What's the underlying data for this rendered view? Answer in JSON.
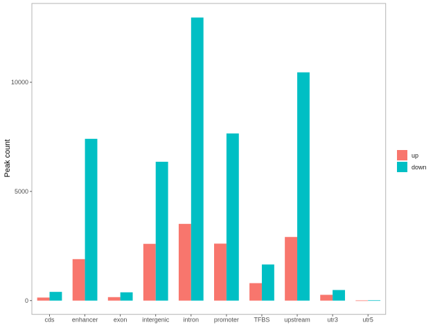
{
  "chart_data": {
    "type": "bar",
    "title": "",
    "xlabel": "",
    "ylabel": "Peak count",
    "categories": [
      "cds",
      "enhancer",
      "exon",
      "intergenic",
      "intron",
      "promoter",
      "TFBS",
      "upstream",
      "utr3",
      "utr5"
    ],
    "series": [
      {
        "name": "up",
        "color": "#F8766D",
        "values": [
          140,
          1900,
          160,
          2600,
          3515,
          2610,
          800,
          2915,
          265,
          10
        ]
      },
      {
        "name": "down",
        "color": "#00BFC4",
        "values": [
          400,
          7410,
          380,
          6360,
          12965,
          7655,
          1655,
          10455,
          485,
          15
        ]
      }
    ],
    "yticks": [
      0,
      5000,
      10000
    ],
    "ylim": [
      -630,
      13610
    ],
    "grid": false,
    "legend_position": "right"
  }
}
